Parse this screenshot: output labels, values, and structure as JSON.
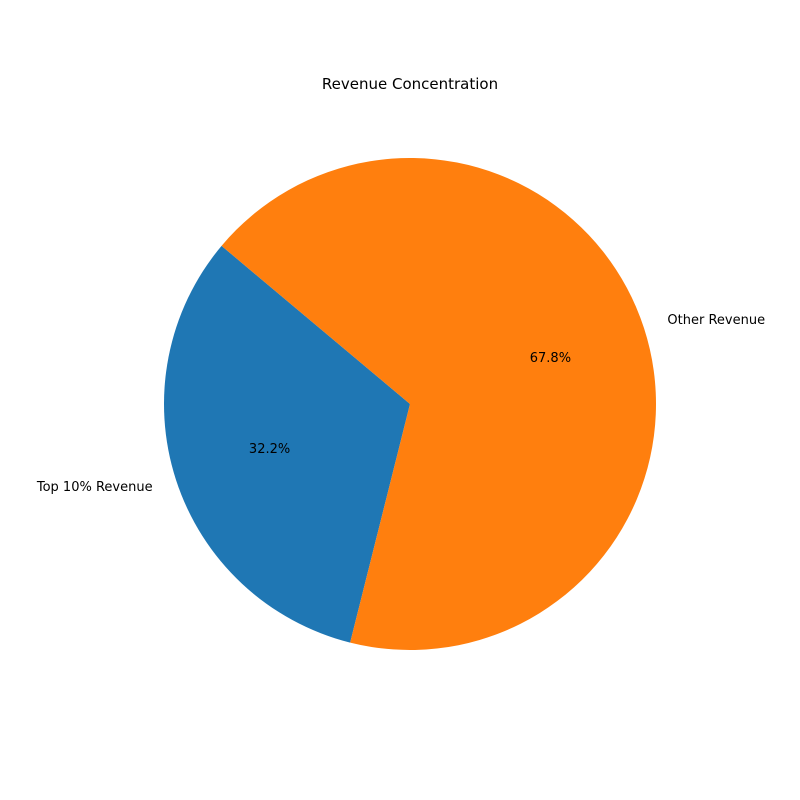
{
  "chart_data": {
    "type": "pie",
    "title": "Revenue Concentration",
    "slices": [
      {
        "label": "Top 10% Revenue",
        "value": 32.2,
        "pct_label": "32.2%",
        "color": "#1f77b4"
      },
      {
        "label": "Other Revenue",
        "value": 67.8,
        "pct_label": "67.8%",
        "color": "#ff7f0e"
      }
    ],
    "start_angle_deg": 140,
    "direction": "counterclockwise",
    "legend": "none"
  }
}
